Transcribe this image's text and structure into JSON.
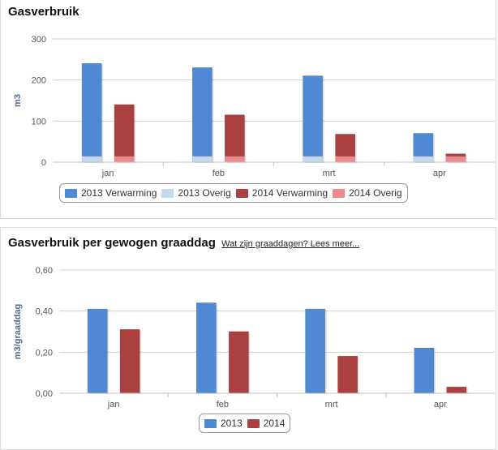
{
  "panel1": {
    "title": "Gasverbruik",
    "link": ""
  },
  "panel2": {
    "title": "Gasverbruik per gewogen graaddag",
    "link": "Wat zijn graaddagen? Lees meer..."
  },
  "colors": {
    "verwarming_2013": "#4f88d3",
    "overig_2013": "#c3d9f1",
    "verwarming_2014": "#aa4040",
    "overig_2014": "#ee8a8a",
    "grid": "#d0d0d0",
    "axis_text": "#555555",
    "ylabel": "#4e6d91"
  },
  "chart_data": [
    {
      "type": "bar",
      "stacked": true,
      "title": "Gasverbruik",
      "xlabel": "",
      "ylabel": "m3",
      "categories": [
        "jan",
        "feb",
        "mrt",
        "apr"
      ],
      "ylim": [
        0,
        300
      ],
      "yticks": [
        0,
        100,
        200,
        300
      ],
      "ytick_labels": [
        "0",
        "100",
        "200",
        "300"
      ],
      "grid": true,
      "legend": "bottom-center",
      "series": [
        {
          "name": "2013 Verwarming",
          "group": "2013",
          "values": [
            225,
            215,
            195,
            55
          ]
        },
        {
          "name": "2013 Overig",
          "group": "2013",
          "values": [
            15,
            15,
            15,
            15
          ]
        },
        {
          "name": "2014 Verwarming",
          "group": "2014",
          "values": [
            125,
            100,
            53,
            5
          ]
        },
        {
          "name": "2014 Overig",
          "group": "2014",
          "values": [
            15,
            15,
            15,
            15
          ]
        }
      ]
    },
    {
      "type": "bar",
      "stacked": false,
      "title": "Gasverbruik per gewogen graaddag",
      "xlabel": "",
      "ylabel": "m3/graaddag",
      "categories": [
        "jan",
        "feb",
        "mrt",
        "apr"
      ],
      "ylim": [
        0,
        0.6
      ],
      "yticks": [
        0,
        0.2,
        0.4,
        0.6
      ],
      "ytick_labels": [
        "0,00",
        "0,20",
        "0,40",
        "0,60"
      ],
      "grid": true,
      "legend": "bottom-center",
      "series": [
        {
          "name": "2013",
          "group": "2013",
          "values": [
            0.41,
            0.44,
            0.41,
            0.22
          ]
        },
        {
          "name": "2014",
          "group": "2014",
          "values": [
            0.31,
            0.3,
            0.18,
            0.03
          ]
        }
      ]
    }
  ],
  "legends": {
    "chart1": [
      {
        "label": "2013 Verwarming",
        "color": "#4f88d3"
      },
      {
        "label": "2013 Overig",
        "color": "#c3d9f1"
      },
      {
        "label": "2014 Verwarming",
        "color": "#aa4040"
      },
      {
        "label": "2014 Overig",
        "color": "#ee8a8a"
      }
    ],
    "chart2": [
      {
        "label": "2013",
        "color": "#4f88d3"
      },
      {
        "label": "2014",
        "color": "#aa4040"
      }
    ]
  }
}
